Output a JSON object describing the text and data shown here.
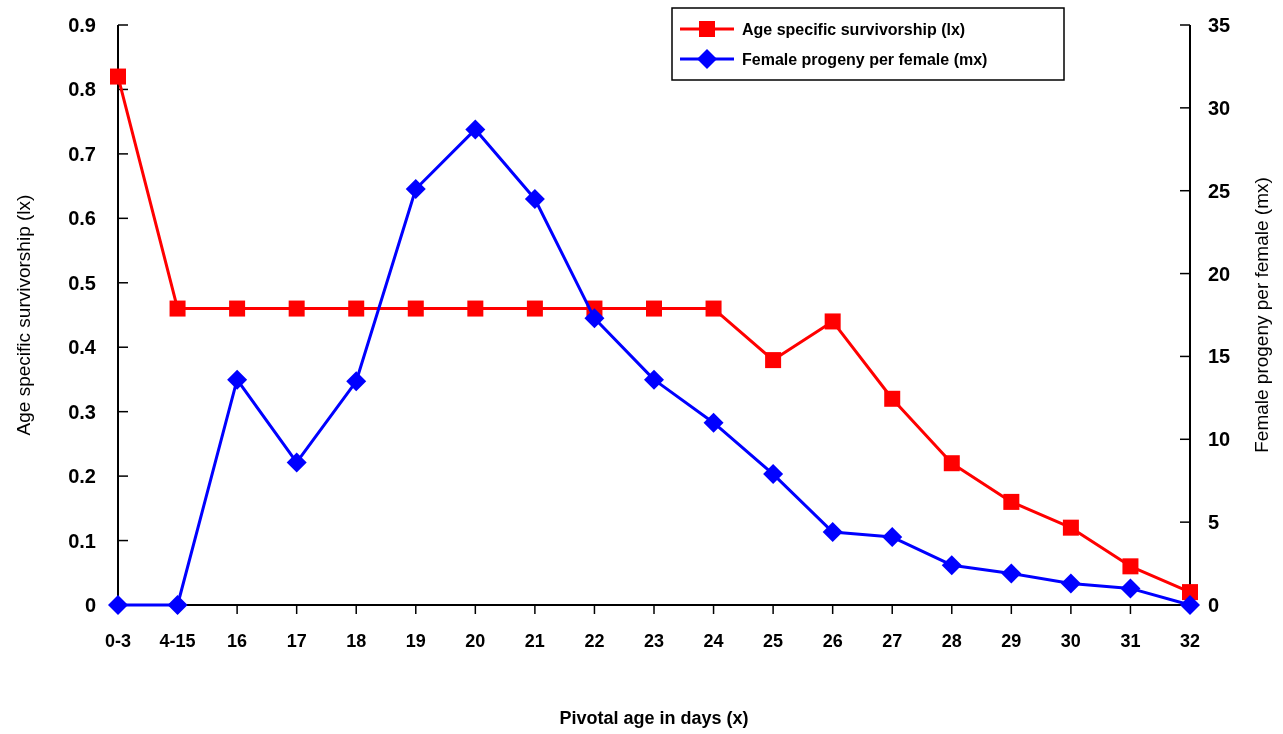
{
  "chart_data": {
    "type": "line",
    "xlabel": "Pivotal age in days (x)",
    "ylabel": "Age specific survivorship (lx)",
    "y2label": "Female progeny per female (mx)",
    "categories": [
      "0-3",
      "4-15",
      "16",
      "17",
      "18",
      "19",
      "20",
      "21",
      "22",
      "23",
      "24",
      "25",
      "26",
      "27",
      "28",
      "29",
      "30",
      "31",
      "32"
    ],
    "series": [
      {
        "name": "Age specific survivorship (lx)",
        "color": "#ff0000",
        "marker": "square",
        "values": [
          0.82,
          0.46,
          0.46,
          0.46,
          0.46,
          0.46,
          0.46,
          0.46,
          0.46,
          0.46,
          0.46,
          0.38,
          0.44,
          0.32,
          0.22,
          0.16,
          0.12,
          0.06,
          0.02
        ]
      },
      {
        "name": "Female progeny per female (mx)",
        "color": "#0000ff",
        "marker": "diamond",
        "axis": "y2",
        "values": [
          0,
          0,
          13.6,
          8.6,
          13.5,
          25.1,
          28.7,
          24.5,
          17.3,
          13.6,
          11.0,
          7.9,
          4.4,
          4.1,
          2.4,
          1.9,
          1.3,
          1.0,
          0
        ]
      }
    ],
    "ylim": [
      0,
      0.9
    ],
    "yticks": [
      {
        "value": 0,
        "label": "0"
      },
      0.1,
      0.2,
      0.3,
      0.4,
      0.5,
      0.6,
      0.7,
      0.8,
      0.9
    ],
    "y2lim": [
      0,
      35
    ],
    "y2ticks": [
      0,
      5,
      10,
      15,
      20,
      25,
      30,
      35
    ],
    "legend": "top right",
    "grid": false
  }
}
